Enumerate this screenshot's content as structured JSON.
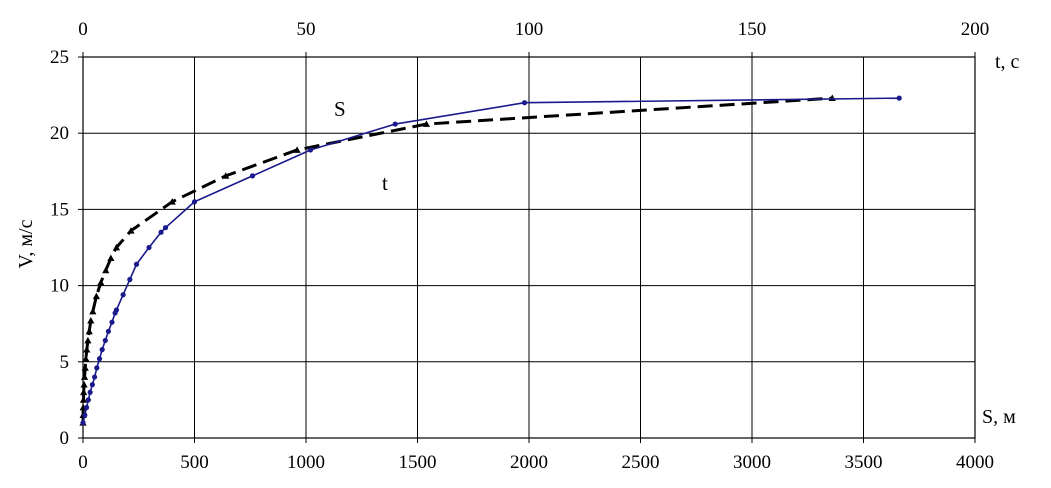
{
  "chart_data": {
    "type": "line",
    "title": "",
    "ylabel": "V, м/с",
    "x_bottom_label": "S, м",
    "x_top_label": "t, с",
    "x_bottom_lim": [
      0,
      4000
    ],
    "x_top_lim": [
      0,
      200
    ],
    "ylim": [
      0,
      25
    ],
    "x_bottom_ticks": [
      "0",
      "500",
      "1000",
      "1500",
      "2000",
      "2500",
      "3000",
      "3500",
      "4000"
    ],
    "x_top_ticks": [
      "0",
      "50",
      "100",
      "150",
      "200"
    ],
    "y_ticks": [
      "0",
      "5",
      "10",
      "15",
      "20",
      "25"
    ],
    "grid": true,
    "legend": "none",
    "series": [
      {
        "name": "S",
        "axis": "bottom",
        "style": "dashed",
        "marker": "triangle",
        "color": "#000000",
        "points": [
          [
            0,
            1.0
          ],
          [
            0.5,
            1.5
          ],
          [
            1,
            2.0
          ],
          [
            2,
            2.5
          ],
          [
            3,
            3.0
          ],
          [
            5,
            3.5
          ],
          [
            7,
            4.0
          ],
          [
            10,
            4.6
          ],
          [
            13,
            5.2
          ],
          [
            17,
            5.8
          ],
          [
            22,
            6.4
          ],
          [
            28,
            7.0
          ],
          [
            35,
            7.7
          ],
          [
            44,
            8.3
          ],
          [
            60,
            9.3
          ],
          [
            80,
            10.2
          ],
          [
            102,
            11.0
          ],
          [
            125,
            11.8
          ],
          [
            150,
            12.5
          ],
          [
            215,
            13.6
          ],
          [
            400,
            15.5
          ],
          [
            640,
            17.2
          ],
          [
            960,
            18.9
          ],
          [
            1540,
            20.6
          ],
          [
            3360,
            22.3
          ]
        ]
      },
      {
        "name": "t",
        "axis": "top",
        "style": "solid",
        "marker": "circle",
        "color": "#1a1a8c",
        "points": [
          [
            0,
            1.0
          ],
          [
            0.4,
            1.5
          ],
          [
            0.8,
            2.0
          ],
          [
            1.2,
            2.5
          ],
          [
            1.6,
            3.0
          ],
          [
            2.1,
            3.5
          ],
          [
            2.6,
            4.0
          ],
          [
            3.1,
            4.6
          ],
          [
            3.7,
            5.2
          ],
          [
            4.3,
            5.8
          ],
          [
            5.0,
            6.4
          ],
          [
            5.7,
            7.0
          ],
          [
            6.5,
            7.6
          ],
          [
            7.2,
            8.2
          ],
          [
            7.5,
            8.4
          ],
          [
            9.0,
            9.4
          ],
          [
            10.5,
            10.4
          ],
          [
            12.0,
            11.4
          ],
          [
            14.8,
            12.5
          ],
          [
            17.5,
            13.5
          ],
          [
            18.5,
            13.8
          ],
          [
            25.0,
            15.5
          ],
          [
            38.0,
            17.2
          ],
          [
            51.0,
            18.9
          ],
          [
            70.0,
            20.6
          ],
          [
            99.0,
            22.0
          ],
          [
            183.0,
            22.3
          ]
        ]
      }
    ],
    "annotations": [
      {
        "text": "S",
        "series": "S"
      },
      {
        "text": "t",
        "series": "t"
      }
    ]
  }
}
